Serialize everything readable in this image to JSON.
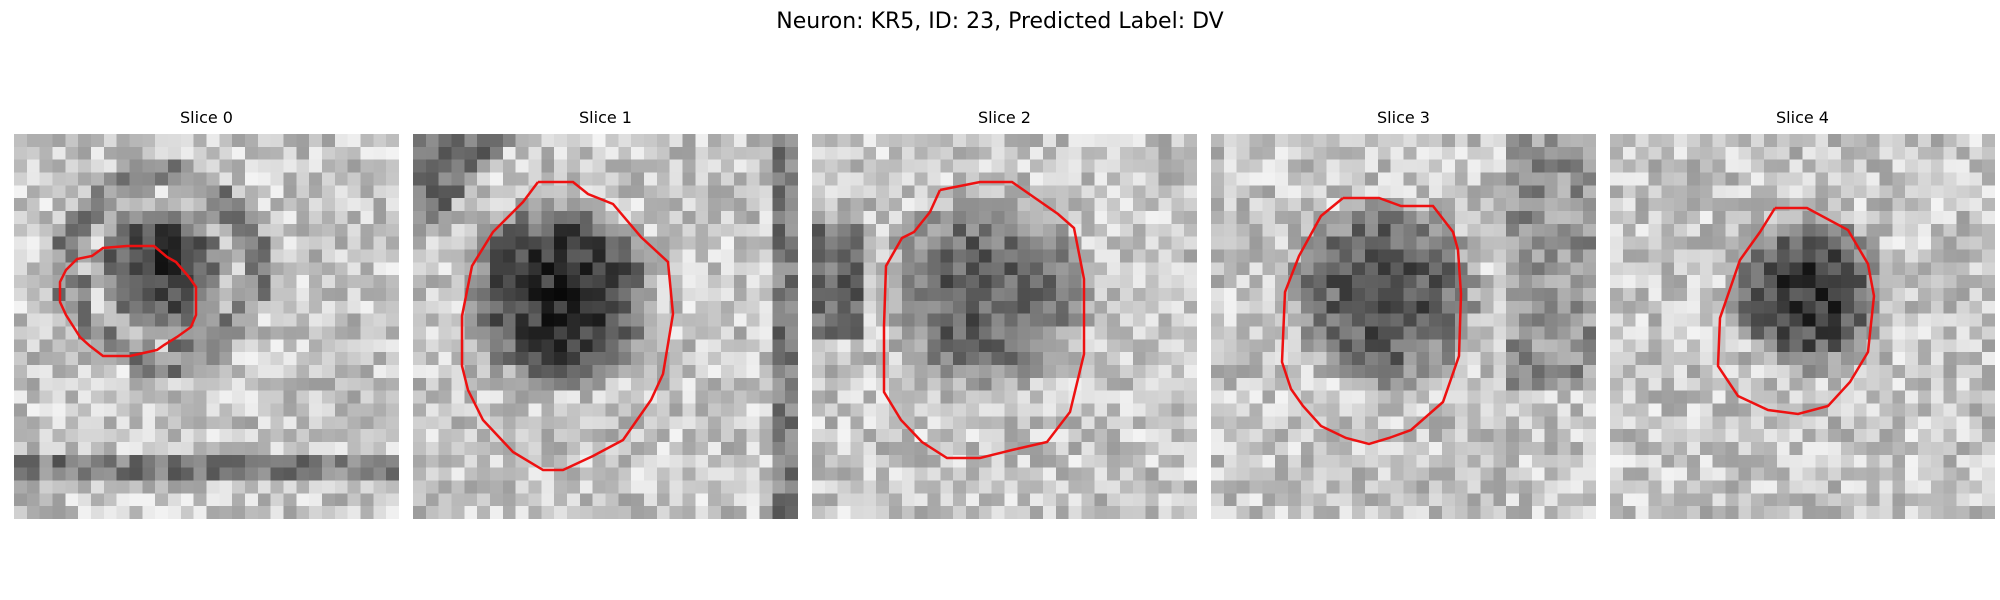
{
  "figure": {
    "title": "Neuron: KR5, ID: 23, Predicted Label: DV",
    "neuron": "KR5",
    "id": 23,
    "predicted_label": "DV",
    "contour_color": "#ee1111"
  },
  "slices": [
    {
      "title": "Slice 0"
    },
    {
      "title": "Slice 1"
    },
    {
      "title": "Slice 2"
    },
    {
      "title": "Slice 3"
    },
    {
      "title": "Slice 4"
    }
  ]
}
